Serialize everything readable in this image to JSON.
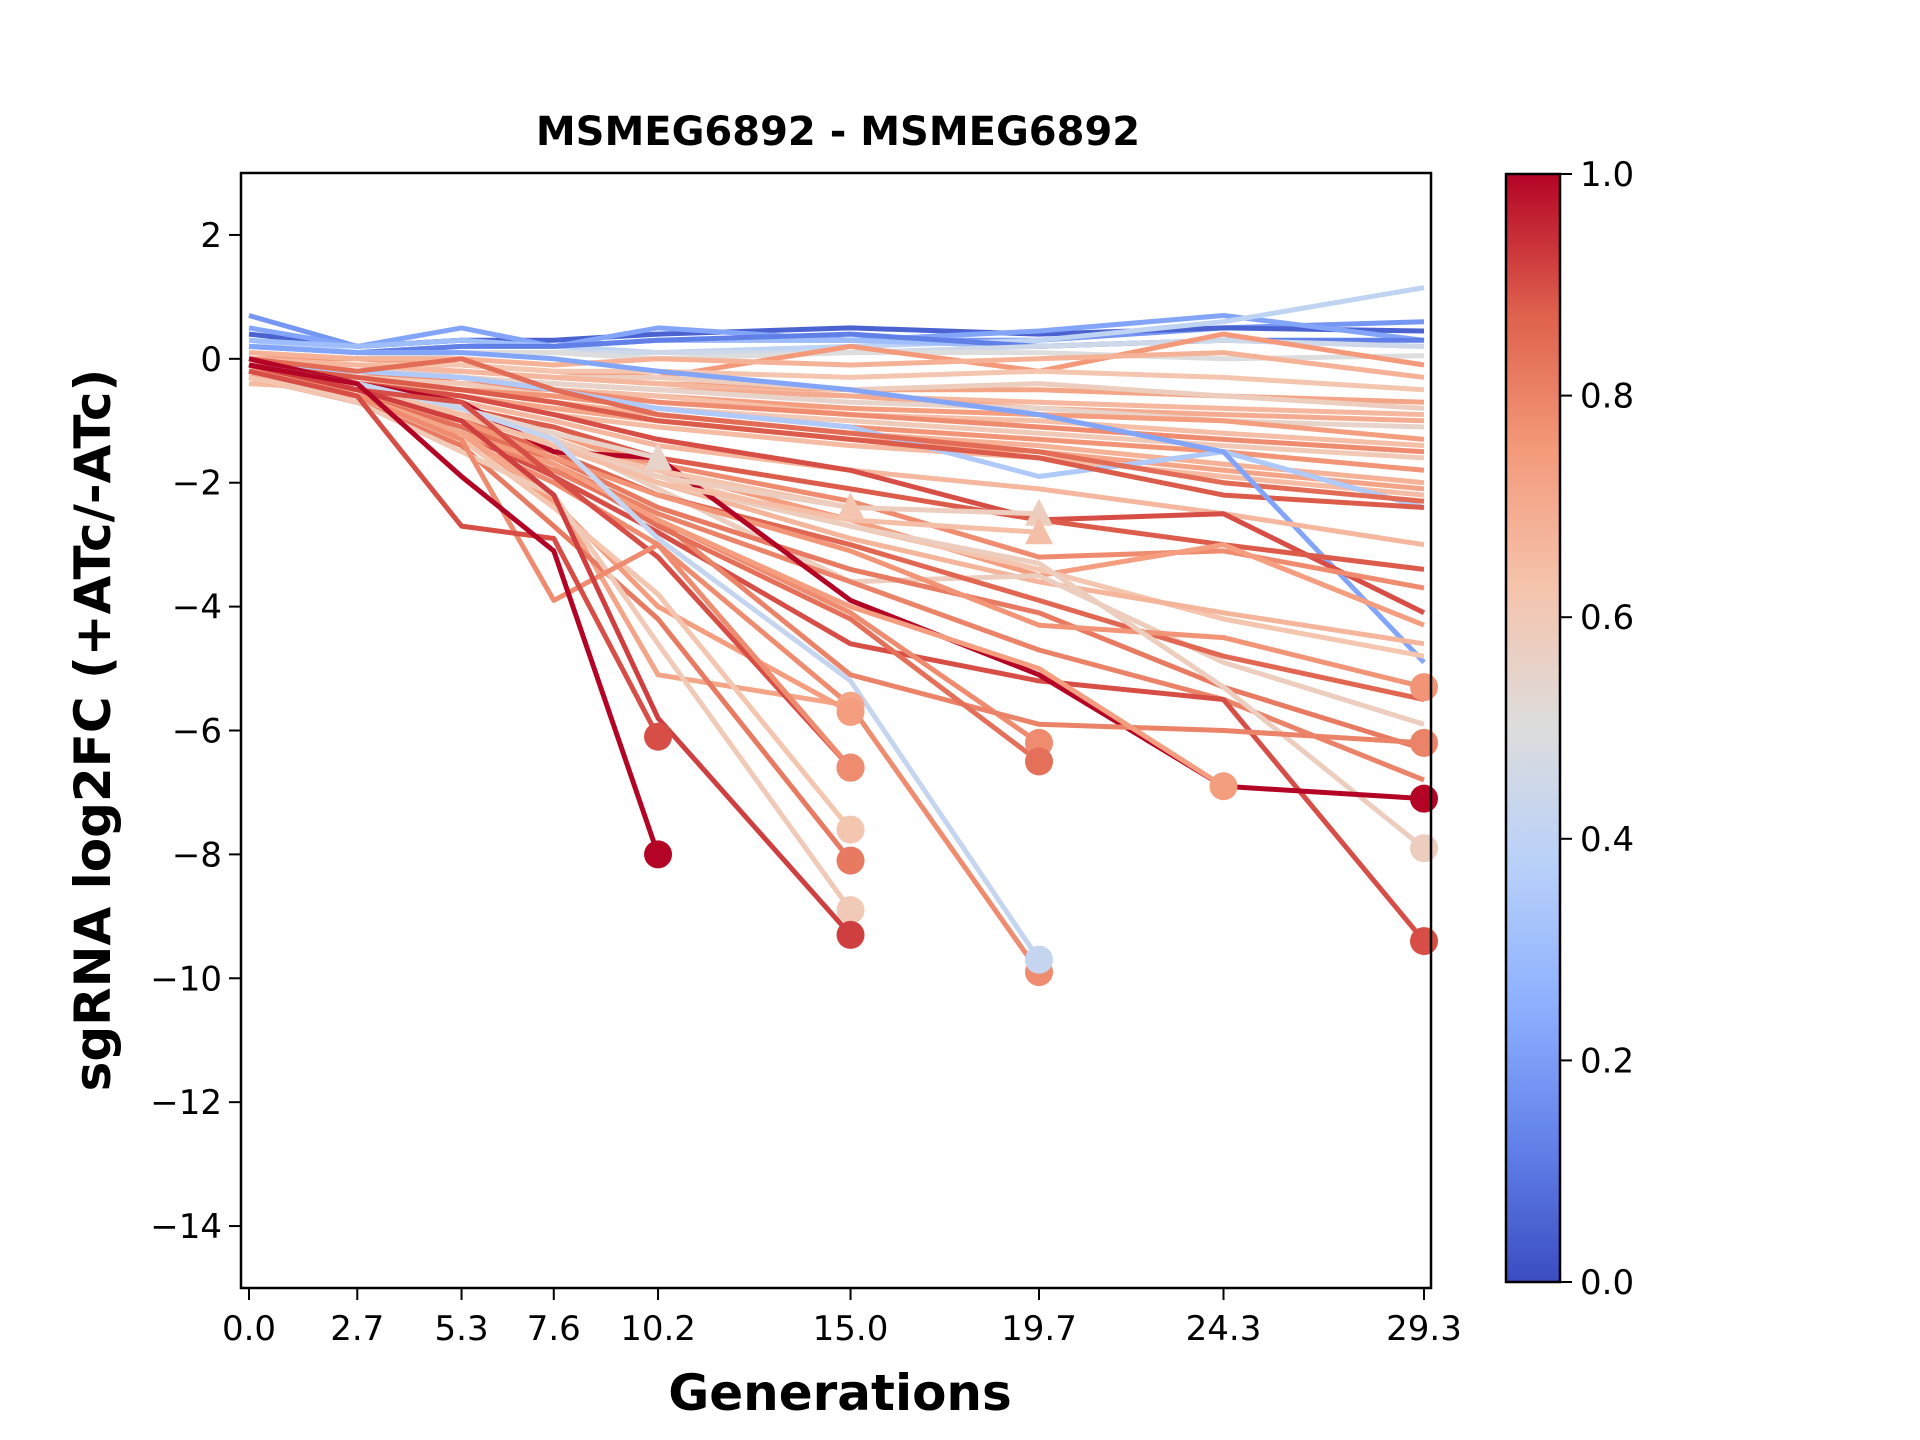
{
  "chart_data": {
    "type": "line",
    "title": "MSMEG6892 - MSMEG6892",
    "xlabel": "Generations",
    "ylabel": "sgRNA log2FC (+ATc/-ATc)",
    "x": [
      0.0,
      2.7,
      5.3,
      7.6,
      10.2,
      15.0,
      19.7,
      24.3,
      29.3
    ],
    "x_tick_labels": [
      "0.0",
      "2.7",
      "5.3",
      "7.6",
      "10.2",
      "15.0",
      "19.7",
      "24.3",
      "29.3"
    ],
    "xlim": [
      -0.2,
      29.4
    ],
    "ylim": [
      -15,
      3
    ],
    "y_ticks": [
      2,
      0,
      -2,
      -4,
      -6,
      -8,
      -10,
      -12,
      -14
    ],
    "y_tick_labels": [
      "2",
      "0",
      "−2",
      "−4",
      "−6",
      "−8",
      "−10",
      "−12",
      "−14"
    ],
    "grid": false,
    "colorbar": {
      "colormap": "coolwarm",
      "range": [
        0.0,
        1.0
      ],
      "ticks": [
        0.0,
        0.2,
        0.4,
        0.6,
        0.8,
        1.0
      ],
      "tick_labels": [
        "0.0",
        "0.2",
        "0.4",
        "0.6",
        "0.8",
        "1.0"
      ],
      "position": "right"
    },
    "series": [
      {
        "c": 0.18,
        "values": [
          0.7,
          0.2,
          0.3,
          0.2,
          0.3,
          0.3,
          0.3,
          0.5,
          0.6
        ],
        "end_marker": "none"
      },
      {
        "c": 0.05,
        "values": [
          0.4,
          0.2,
          0.3,
          0.3,
          0.4,
          0.5,
          0.4,
          0.5,
          0.45
        ],
        "end_marker": "none"
      },
      {
        "c": 0.22,
        "values": [
          0.5,
          0.2,
          0.5,
          0.2,
          0.5,
          0.3,
          0.45,
          0.7,
          0.3
        ],
        "end_marker": "none"
      },
      {
        "c": 0.4,
        "values": [
          0.3,
          0.1,
          0.2,
          0.2,
          0.1,
          0.2,
          0.3,
          0.6,
          1.15
        ],
        "end_marker": "none"
      },
      {
        "c": 0.3,
        "values": [
          0.3,
          0.2,
          0.3,
          0.2,
          0.3,
          0.3,
          0.2,
          0.3,
          0.2
        ],
        "end_marker": "none"
      },
      {
        "c": 0.12,
        "values": [
          0.2,
          0.1,
          0.2,
          0.2,
          0.3,
          0.4,
          0.2,
          0.3,
          0.3
        ],
        "end_marker": "none"
      },
      {
        "c": 0.45,
        "values": [
          0.2,
          0.1,
          0.1,
          0.1,
          0.1,
          0.1,
          0.2,
          0.3,
          0.2
        ],
        "end_marker": "none"
      },
      {
        "c": 0.5,
        "values": [
          0.1,
          0.0,
          0.1,
          0.1,
          0.0,
          0.1,
          0.1,
          0.0,
          0.05
        ],
        "end_marker": "none"
      },
      {
        "c": 0.75,
        "values": [
          0.0,
          0.0,
          -0.1,
          -0.2,
          -0.3,
          0.2,
          -0.2,
          0.4,
          -0.1
        ],
        "end_marker": "none"
      },
      {
        "c": 0.68,
        "values": [
          0.1,
          0.0,
          0.0,
          -0.1,
          0.0,
          -0.1,
          0.0,
          0.1,
          -0.3
        ],
        "end_marker": "none"
      },
      {
        "c": 0.62,
        "values": [
          -0.1,
          -0.1,
          -0.1,
          -0.2,
          -0.2,
          -0.3,
          -0.2,
          -0.3,
          -0.5
        ],
        "end_marker": "none"
      },
      {
        "c": 0.72,
        "values": [
          -0.2,
          -0.2,
          -0.2,
          -0.3,
          -0.4,
          -0.5,
          -0.5,
          -0.6,
          -0.7
        ],
        "end_marker": "none"
      },
      {
        "c": 0.58,
        "values": [
          -0.1,
          -0.2,
          -0.2,
          -0.3,
          -0.3,
          -0.5,
          -0.4,
          -0.6,
          -0.8
        ],
        "end_marker": "none"
      },
      {
        "c": 0.66,
        "values": [
          0.0,
          -0.1,
          -0.2,
          -0.3,
          -0.4,
          -0.6,
          -0.7,
          -0.8,
          -0.9
        ],
        "end_marker": "none"
      },
      {
        "c": 0.7,
        "values": [
          -0.1,
          -0.2,
          -0.3,
          -0.4,
          -0.5,
          -0.6,
          -0.8,
          -0.9,
          -1.0
        ],
        "end_marker": "none"
      },
      {
        "c": 0.55,
        "values": [
          -0.2,
          -0.2,
          -0.3,
          -0.4,
          -0.5,
          -0.7,
          -0.8,
          -1.0,
          -1.1
        ],
        "end_marker": "none"
      },
      {
        "c": 0.74,
        "values": [
          -0.1,
          -0.3,
          -0.3,
          -0.5,
          -0.6,
          -0.8,
          -0.9,
          -1.0,
          -1.3
        ],
        "end_marker": "none"
      },
      {
        "c": 0.64,
        "values": [
          -0.2,
          -0.3,
          -0.4,
          -0.5,
          -0.6,
          -0.9,
          -1.0,
          -1.2,
          -1.4
        ],
        "end_marker": "none"
      },
      {
        "c": 0.78,
        "values": [
          -0.1,
          -0.2,
          -0.4,
          -0.5,
          -0.7,
          -0.9,
          -1.1,
          -1.3,
          -1.5
        ],
        "end_marker": "none"
      },
      {
        "c": 0.6,
        "values": [
          -0.2,
          -0.3,
          -0.4,
          -0.6,
          -0.8,
          -1.0,
          -1.2,
          -1.4,
          -1.6
        ],
        "end_marker": "none"
      },
      {
        "c": 0.76,
        "values": [
          -0.3,
          -0.4,
          -0.5,
          -0.6,
          -0.8,
          -1.1,
          -1.3,
          -1.5,
          -1.8
        ],
        "end_marker": "none"
      },
      {
        "c": 0.68,
        "values": [
          -0.2,
          -0.4,
          -0.5,
          -0.7,
          -0.9,
          -1.2,
          -1.4,
          -1.7,
          -2.0
        ],
        "end_marker": "none"
      },
      {
        "c": 0.72,
        "values": [
          -0.3,
          -0.4,
          -0.6,
          -0.8,
          -1.0,
          -1.3,
          -1.5,
          -1.8,
          -2.1
        ],
        "end_marker": "none"
      },
      {
        "c": 0.65,
        "values": [
          -0.4,
          -0.5,
          -0.6,
          -0.9,
          -1.1,
          -1.4,
          -1.6,
          -1.9,
          -2.2
        ],
        "end_marker": "none"
      },
      {
        "c": 0.35,
        "values": [
          -0.1,
          -0.2,
          -0.3,
          -0.5,
          -0.8,
          -1.1,
          -1.9,
          -1.5,
          -2.4
        ],
        "end_marker": "none"
      },
      {
        "c": 0.88,
        "values": [
          -0.1,
          -0.3,
          -0.5,
          -0.7,
          -1.0,
          -1.3,
          -1.6,
          -2.2,
          -2.4
        ],
        "end_marker": "none"
      },
      {
        "c": 0.85,
        "values": [
          0.0,
          -0.2,
          0.0,
          -0.5,
          -0.9,
          -1.2,
          -1.5,
          -2.0,
          -2.3
        ],
        "end_marker": "none"
      },
      {
        "c": 0.22,
        "values": [
          0.2,
          0.1,
          0.1,
          0.0,
          -0.2,
          -0.5,
          -0.9,
          -1.5,
          -4.9
        ],
        "end_marker": "none"
      },
      {
        "c": 0.66,
        "values": [
          -0.3,
          -0.5,
          -0.7,
          -1.0,
          -1.4,
          -1.8,
          -2.1,
          -2.5,
          -3.0
        ],
        "end_marker": "none"
      },
      {
        "c": 0.9,
        "values": [
          -0.1,
          -0.4,
          -0.6,
          -0.9,
          -1.3,
          -1.8,
          -2.6,
          -2.5,
          -4.1
        ],
        "end_marker": "none"
      },
      {
        "c": 0.88,
        "values": [
          -0.2,
          -0.5,
          -0.8,
          -1.1,
          -1.6,
          -2.1,
          -2.6,
          -3.0,
          -3.4
        ],
        "end_marker": "none"
      },
      {
        "c": 0.78,
        "values": [
          -0.3,
          -0.6,
          -0.9,
          -1.2,
          -1.7,
          -2.3,
          -3.2,
          -3.1,
          -3.7
        ],
        "end_marker": "none"
      },
      {
        "c": 0.74,
        "values": [
          -0.2,
          -0.5,
          -0.8,
          -1.2,
          -1.8,
          -2.6,
          -3.5,
          -3.0,
          -4.3
        ],
        "end_marker": "none"
      },
      {
        "c": 0.62,
        "values": [
          -0.3,
          -0.6,
          -1.0,
          -1.3,
          -1.9,
          -2.7,
          -3.4,
          -4.2,
          -4.8
        ],
        "end_marker": "none"
      },
      {
        "c": 0.67,
        "values": [
          -0.2,
          -0.5,
          -0.9,
          -1.3,
          -2.0,
          -2.9,
          -3.6,
          -4.1,
          -4.6
        ],
        "end_marker": "none"
      },
      {
        "c": 0.58,
        "values": [
          -0.1,
          -0.4,
          -0.8,
          -1.3,
          -2.1,
          -3.6,
          -3.5,
          -4.9,
          -5.9
        ],
        "end_marker": "none"
      },
      {
        "c": 0.86,
        "values": [
          -0.2,
          -0.5,
          -1.0,
          -1.5,
          -2.2,
          -3.0,
          -3.9,
          -4.8,
          -5.5
        ],
        "end_marker": "none"
      },
      {
        "c": 0.82,
        "values": [
          -0.3,
          -0.6,
          -1.1,
          -1.6,
          -2.4,
          -3.4,
          -4.1,
          -5.3,
          -6.3
        ],
        "end_marker": "none"
      },
      {
        "c": 0.8,
        "values": [
          -0.2,
          -0.6,
          -1.1,
          -1.7,
          -2.5,
          -3.6,
          -4.7,
          -5.5,
          -6.8
        ],
        "end_marker": "none"
      },
      {
        "c": 0.9,
        "values": [
          -0.3,
          -0.7,
          -1.2,
          -1.9,
          -2.8,
          -4.6,
          -5.2,
          -5.5,
          -9.4
        ],
        "end_marker": "circle"
      },
      {
        "c": 0.76,
        "values": [
          -0.2,
          -0.6,
          -1.0,
          -1.6,
          -2.2,
          -3.1,
          -4.3,
          -4.5,
          -5.3
        ],
        "end_marker": "circle"
      },
      {
        "c": 0.58,
        "values": [
          -0.1,
          -0.5,
          -0.8,
          -1.3,
          -2.0,
          -2.7,
          -3.3,
          -5.3,
          -7.9
        ],
        "end_marker": "circle"
      },
      {
        "c": 1.0,
        "values": [
          0.0,
          -0.4,
          -0.7,
          -1.5,
          -1.6,
          -3.9,
          -5.1,
          -6.9,
          -7.1
        ],
        "end_marker": "circle"
      },
      {
        "c": 0.55,
        "values": [
          -0.1,
          -0.4,
          -0.8,
          -1.2,
          -1.6
        ],
        "end_marker": "triangle"
      },
      {
        "c": 0.62,
        "values": [
          -0.2,
          -0.5,
          -0.9,
          -1.4,
          -1.8,
          -2.4
        ],
        "end_marker": "triangle"
      },
      {
        "c": 0.58,
        "values": [
          -0.2,
          -0.5,
          -0.9,
          -1.4,
          -1.9,
          -2.4,
          -2.5
        ],
        "end_marker": "triangle"
      },
      {
        "c": 0.64,
        "values": [
          -0.2,
          -0.5,
          -0.9,
          -1.4,
          -2.0,
          -2.6,
          -2.8
        ],
        "end_marker": "triangle"
      },
      {
        "c": 0.78,
        "values": [
          -0.3,
          -0.7,
          -1.2,
          -1.8,
          -2.6,
          -4.1,
          -6.2
        ],
        "end_marker": "circle"
      },
      {
        "c": 0.8,
        "values": [
          -0.3,
          -0.7,
          -1.2,
          -1.8,
          -2.6,
          -5.1,
          -5.9,
          -6.0,
          -6.2
        ],
        "end_marker": "circle"
      },
      {
        "c": 0.84,
        "values": [
          -0.2,
          -0.6,
          -1.1,
          -1.7,
          -2.7,
          -4.2,
          -6.5
        ],
        "end_marker": "circle"
      },
      {
        "c": 0.74,
        "values": [
          -0.2,
          -0.6,
          -1.2,
          -1.7,
          -2.6,
          -4.0,
          -5.0,
          -6.9
        ],
        "end_marker": "circle"
      },
      {
        "c": 0.78,
        "values": [
          -0.3,
          -0.7,
          -1.3,
          -2.0,
          -3.0,
          -5.6,
          -9.9
        ],
        "end_marker": "circle"
      },
      {
        "c": 0.42,
        "values": [
          -0.1,
          -0.4,
          -0.8,
          -1.3,
          -2.9,
          -5.2,
          -9.7
        ],
        "end_marker": "circle"
      },
      {
        "c": 0.72,
        "values": [
          -0.2,
          -0.6,
          -1.2,
          -2.2,
          -5.1,
          -5.6
        ],
        "end_marker": "circle"
      },
      {
        "c": 0.74,
        "values": [
          -0.3,
          -0.6,
          -1.3,
          -2.3,
          -4.0,
          -5.7
        ],
        "end_marker": "circle"
      },
      {
        "c": 0.62,
        "values": [
          -0.3,
          -0.7,
          -1.3,
          -2.4,
          -3.8,
          -7.6
        ],
        "end_marker": "circle"
      },
      {
        "c": 0.82,
        "values": [
          -0.2,
          -0.7,
          -1.4,
          -2.7,
          -4.2,
          -8.1
        ],
        "end_marker": "circle"
      },
      {
        "c": 0.6,
        "values": [
          -0.2,
          -0.7,
          -1.5,
          -2.2,
          -4.6,
          -8.9
        ],
        "end_marker": "circle"
      },
      {
        "c": 0.9,
        "values": [
          -0.1,
          -0.5,
          -0.7,
          -1.9,
          -3.2,
          -6.6
        ],
        "end_marker": "circle"
      },
      {
        "c": 0.78,
        "values": [
          -0.1,
          -0.6,
          -1.3,
          -3.9,
          -3.0,
          -6.6
        ],
        "end_marker": "circle"
      },
      {
        "c": 0.92,
        "values": [
          -0.1,
          -0.5,
          -1.0,
          -2.2,
          -5.8,
          -9.3
        ],
        "end_marker": "circle"
      },
      {
        "c": 0.9,
        "values": [
          -0.2,
          -0.6,
          -2.7,
          -2.9,
          -6.1
        ],
        "end_marker": "circle"
      },
      {
        "c": 1.0,
        "values": [
          -0.1,
          -0.4,
          -1.9,
          -3.1,
          -8.0
        ],
        "end_marker": "circle"
      }
    ]
  }
}
